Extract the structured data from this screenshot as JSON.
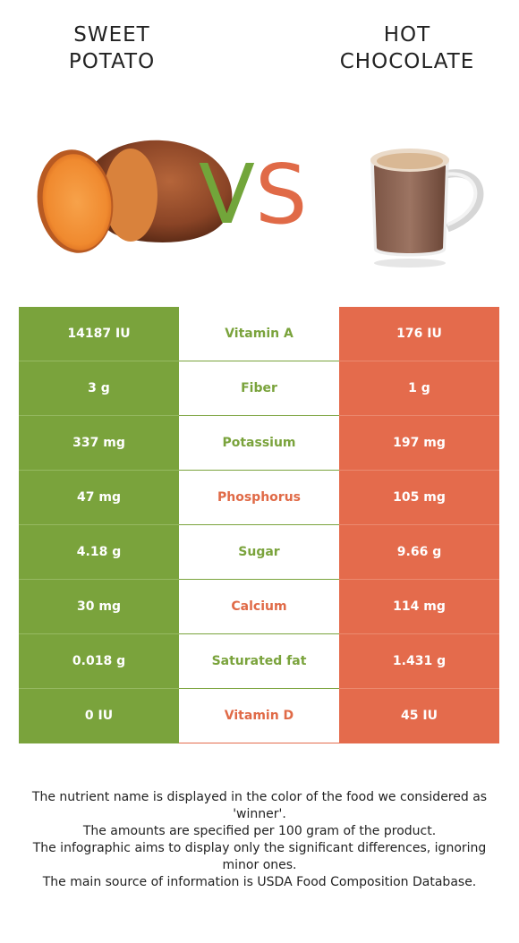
{
  "left_food": {
    "title_line1": "SWEET",
    "title_line2": "POTATO",
    "color": "#7aa33c"
  },
  "right_food": {
    "title_line1": "HOT",
    "title_line2": "CHOCOLATE",
    "color": "#e46b4c"
  },
  "vs": {
    "v": "V",
    "s": "S"
  },
  "rows": [
    {
      "left": "14187 IU",
      "name": "Vitamin A",
      "right": "176 IU",
      "winner": "left"
    },
    {
      "left": "3 g",
      "name": "Fiber",
      "right": "1 g",
      "winner": "left"
    },
    {
      "left": "337 mg",
      "name": "Potassium",
      "right": "197 mg",
      "winner": "left"
    },
    {
      "left": "47 mg",
      "name": "Phosphorus",
      "right": "105 mg",
      "winner": "right"
    },
    {
      "left": "4.18 g",
      "name": "Sugar",
      "right": "9.66 g",
      "winner": "left"
    },
    {
      "left": "30 mg",
      "name": "Calcium",
      "right": "114 mg",
      "winner": "right"
    },
    {
      "left": "0.018 g",
      "name": "Saturated fat",
      "right": "1.431 g",
      "winner": "left"
    },
    {
      "left": "0 IU",
      "name": "Vitamin D",
      "right": "45 IU",
      "winner": "right"
    }
  ],
  "footer": {
    "line1": "The nutrient name is displayed in the color of the food we considered as 'winner'.",
    "line2": "The amounts are specified per 100 gram of the product.",
    "line3": "The infographic aims to display only the significant differences, ignoring minor ones.",
    "line4": "The main source of information is USDA Food Composition Database."
  }
}
